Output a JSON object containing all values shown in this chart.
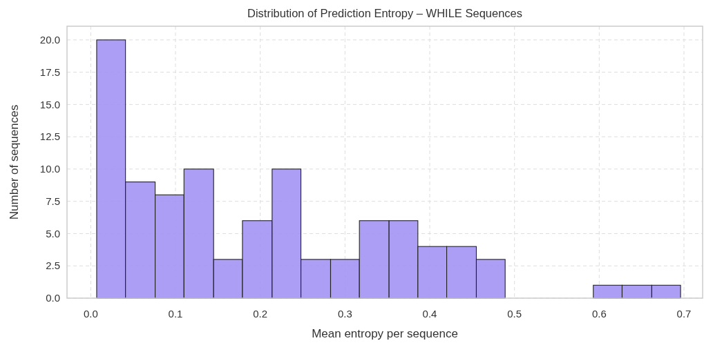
{
  "chart_data": {
    "type": "histogram",
    "title": "Distribution of Prediction Entropy – WHILE Sequences",
    "xlabel": "Mean entropy per sequence",
    "ylabel": "Number of sequences",
    "bins": [
      0.007,
      0.041,
      0.076,
      0.11,
      0.145,
      0.179,
      0.214,
      0.248,
      0.283,
      0.317,
      0.352,
      0.386,
      0.42,
      0.455,
      0.489,
      0.593,
      0.627,
      0.662,
      0.696
    ],
    "values": [
      20,
      9,
      8,
      10,
      3,
      6,
      10,
      3,
      3,
      6,
      6,
      4,
      4,
      3,
      0,
      1,
      1,
      1
    ],
    "color": "#a393f4",
    "xlim": [
      -0.028,
      0.722
    ],
    "xticks": [
      {
        "value": 0,
        "label": "0.0"
      },
      0.1,
      0.2,
      0.3,
      0.4,
      0.5,
      0.6,
      0.7
    ],
    "ylim": [
      0,
      21.06
    ],
    "yticks": [
      {
        "value": 0,
        "label": "0.0"
      },
      2.5,
      {
        "value": 5,
        "label": "5.0"
      },
      7.5,
      {
        "value": 10,
        "label": "10.0"
      },
      12.5,
      {
        "value": 15,
        "label": "15.0"
      },
      17.5,
      {
        "value": 20,
        "label": "20.0"
      }
    ],
    "grid": true
  }
}
